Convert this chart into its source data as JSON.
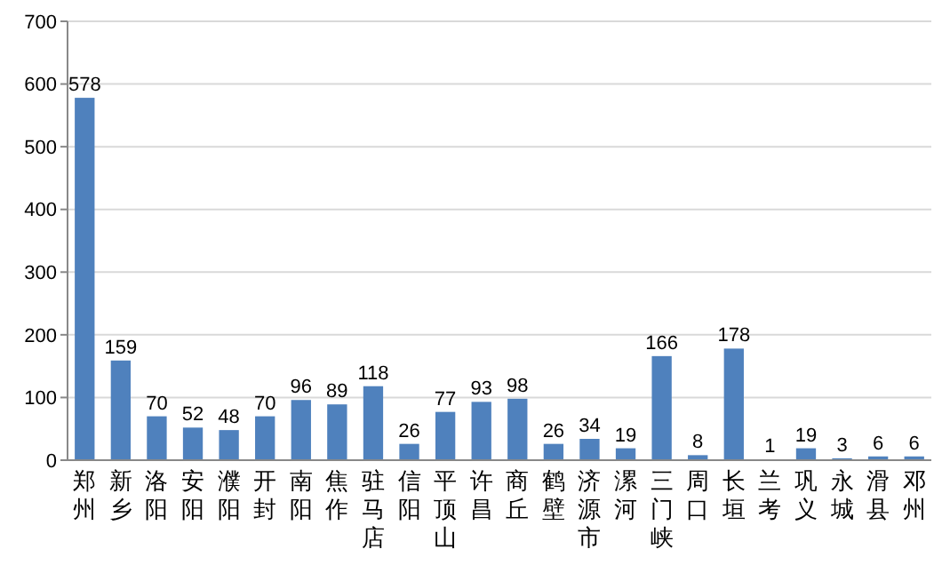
{
  "chart_data": {
    "type": "bar",
    "categories": [
      "郑州",
      "新乡",
      "洛阳",
      "安阳",
      "濮阳",
      "开封",
      "南阳",
      "焦作",
      "驻马店",
      "信阳",
      "平顶山",
      "许昌",
      "商丘",
      "鹤壁",
      "济源市",
      "漯河",
      "三门峡",
      "周口",
      "长垣",
      "兰考",
      "巩义",
      "永城",
      "滑县",
      "邓州"
    ],
    "values": [
      578,
      159,
      70,
      52,
      48,
      70,
      96,
      89,
      118,
      26,
      77,
      93,
      98,
      26,
      34,
      19,
      166,
      8,
      178,
      1,
      19,
      3,
      6,
      6
    ],
    "color": "#4f81bd",
    "ylim": [
      0,
      700
    ],
    "yticks": [
      0,
      100,
      200,
      300,
      400,
      500,
      600,
      700
    ],
    "grid": "y",
    "data_labels": true
  }
}
